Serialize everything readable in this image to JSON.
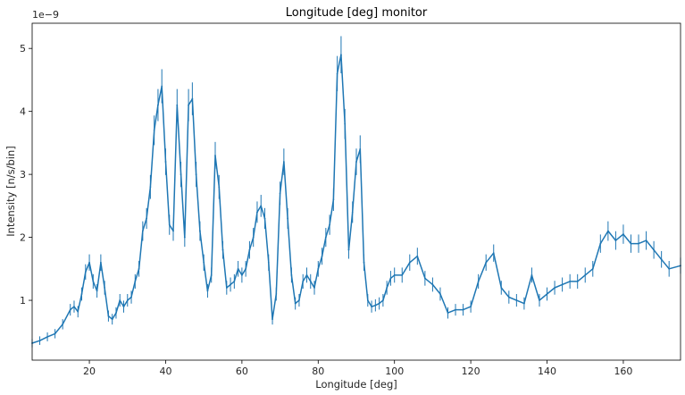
{
  "chart_data": {
    "type": "line",
    "title": "Longitude [deg] monitor",
    "xlabel": "Longitude [deg]",
    "ylabel": "Intensity [n/s/bin]",
    "y_offset_text": "1e−9",
    "xlim": [
      5,
      175
    ],
    "ylim": [
      0.05,
      5.4
    ],
    "x_ticks": [
      20,
      40,
      60,
      80,
      100,
      120,
      140,
      160
    ],
    "y_ticks": [
      1,
      2,
      3,
      4,
      5
    ],
    "x_tick_labels": [
      "20",
      "40",
      "60",
      "80",
      "100",
      "120",
      "140",
      "160"
    ],
    "y_tick_labels": [
      "1",
      "2",
      "3",
      "4",
      "5"
    ],
    "grid": false,
    "legend": "none",
    "line_color": "#1f77b4",
    "error_bars": true,
    "series": [
      {
        "x": [
          5,
          7,
          9,
          11,
          13,
          15,
          16,
          17,
          18,
          19,
          20,
          21,
          22,
          23,
          24,
          25,
          26,
          27,
          28,
          29,
          30,
          31,
          32,
          33,
          34,
          35,
          36,
          37,
          38,
          39,
          40,
          41,
          42,
          43,
          44,
          45,
          46,
          47,
          48,
          49,
          50,
          51,
          52,
          53,
          54,
          55,
          56,
          57,
          58,
          59,
          60,
          61,
          62,
          63,
          64,
          65,
          66,
          67,
          68,
          69,
          70,
          71,
          72,
          73,
          74,
          75,
          76,
          77,
          78,
          79,
          80,
          81,
          82,
          83,
          84,
          85,
          86,
          87,
          88,
          89,
          90,
          91,
          92,
          93,
          94,
          95,
          96,
          97,
          98,
          99,
          100,
          102,
          104,
          106,
          108,
          110,
          112,
          114,
          116,
          118,
          120,
          122,
          124,
          126,
          128,
          130,
          132,
          134,
          136,
          138,
          140,
          142,
          144,
          146,
          148,
          150,
          152,
          154,
          156,
          158,
          160,
          162,
          164,
          166,
          168,
          170,
          172,
          175
        ],
        "values": [
          0.32,
          0.36,
          0.42,
          0.47,
          0.62,
          0.85,
          0.9,
          0.82,
          1.1,
          1.45,
          1.6,
          1.3,
          1.15,
          1.6,
          1.2,
          0.75,
          0.7,
          0.8,
          1.0,
          0.9,
          1.0,
          1.05,
          1.3,
          1.5,
          2.1,
          2.3,
          2.8,
          3.7,
          4.1,
          4.4,
          3.2,
          2.2,
          2.1,
          4.1,
          3.0,
          2.0,
          4.1,
          4.2,
          3.0,
          2.1,
          1.6,
          1.15,
          1.4,
          3.3,
          2.8,
          1.8,
          1.2,
          1.25,
          1.3,
          1.5,
          1.4,
          1.5,
          1.8,
          2.0,
          2.4,
          2.5,
          2.3,
          1.6,
          0.7,
          1.1,
          2.7,
          3.2,
          2.3,
          1.4,
          0.95,
          1.0,
          1.3,
          1.4,
          1.3,
          1.2,
          1.5,
          1.7,
          2.0,
          2.2,
          2.6,
          4.6,
          4.9,
          3.8,
          1.8,
          2.4,
          3.2,
          3.4,
          1.6,
          1.0,
          0.9,
          0.92,
          0.95,
          1.0,
          1.2,
          1.35,
          1.4,
          1.4,
          1.6,
          1.7,
          1.35,
          1.25,
          1.1,
          0.8,
          0.85,
          0.85,
          0.9,
          1.3,
          1.6,
          1.75,
          1.2,
          1.05,
          1.0,
          0.95,
          1.4,
          1.0,
          1.1,
          1.2,
          1.25,
          1.3,
          1.3,
          1.4,
          1.5,
          1.9,
          2.1,
          1.95,
          2.05,
          1.9,
          1.9,
          1.95,
          1.8,
          1.65,
          1.5,
          1.55
        ]
      }
    ]
  }
}
